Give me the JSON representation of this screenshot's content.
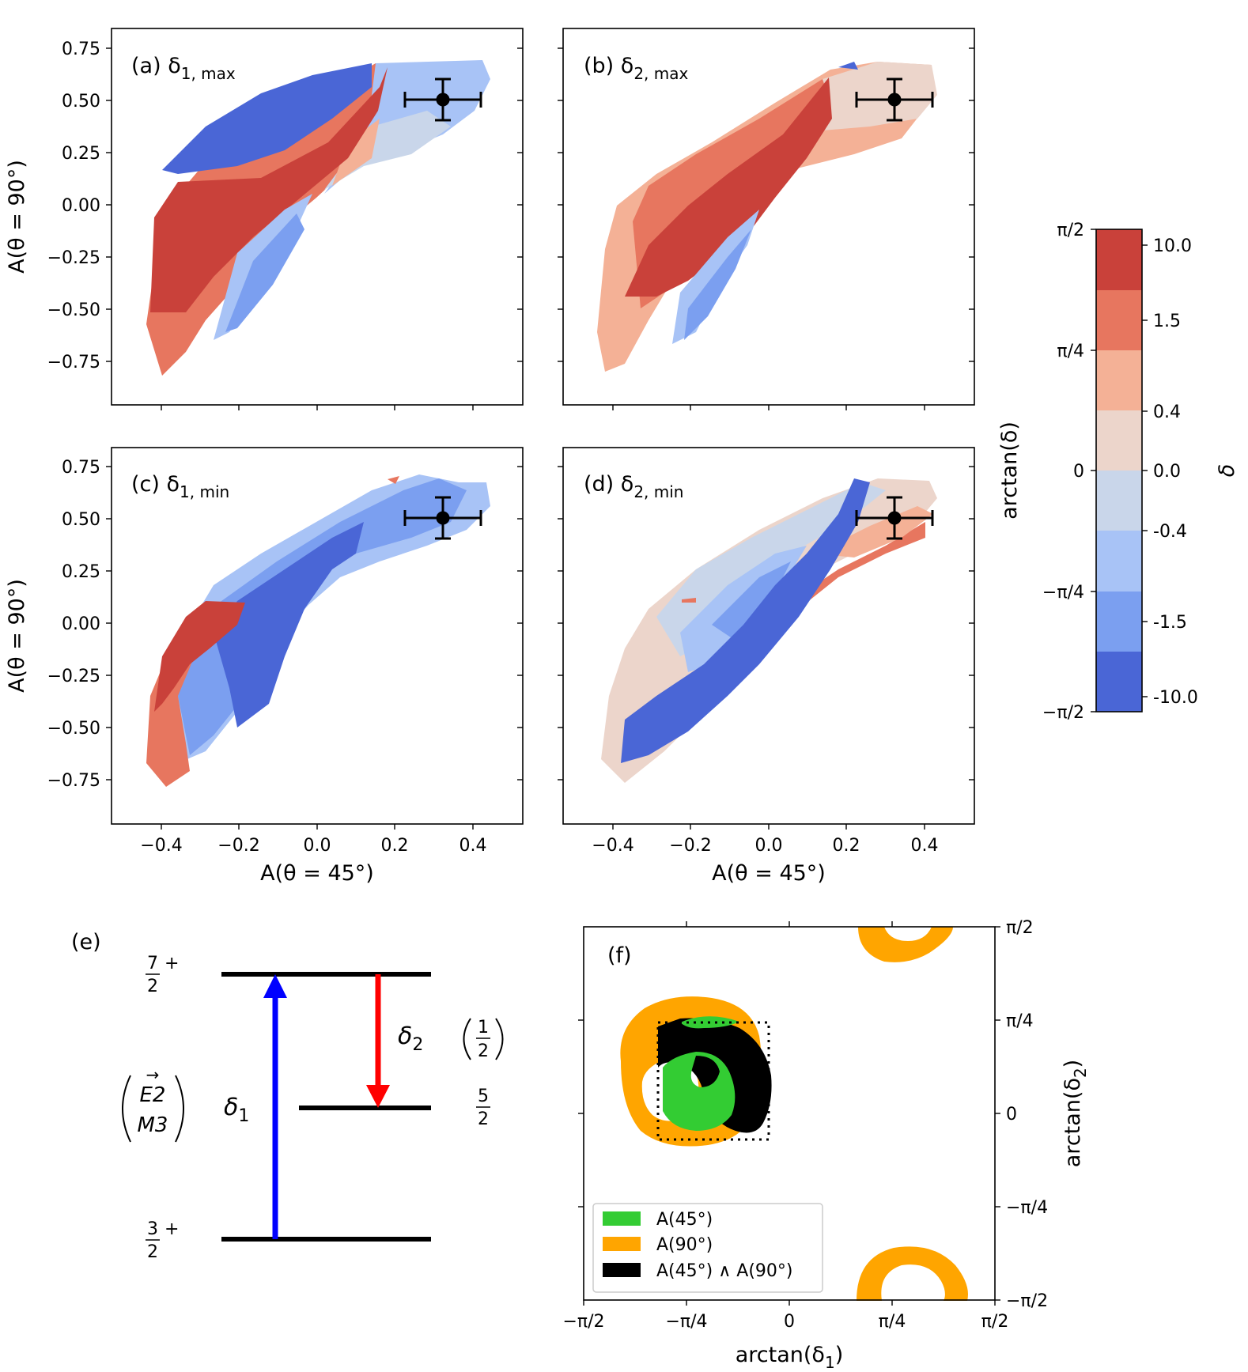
{
  "chart_data": [
    {
      "type": "filled-contour",
      "panel": "(a)",
      "label_prefix": "(a) δ",
      "label_sub": "1, max",
      "xlim": [
        -0.55,
        0.55
      ],
      "ylim": [
        -0.87,
        0.78
      ],
      "xticks": [
        "−0.4",
        "−0.2",
        "0.0",
        "0.2",
        "0.4"
      ],
      "yticks": [
        "0.75",
        "0.50",
        "0.25",
        "0.00",
        "−0.25",
        "−0.50",
        "−0.75"
      ],
      "xlabel": "",
      "ylabel": "A(θ = 90°)",
      "measured_point": {
        "x": 0.35,
        "y": 0.5,
        "xerr": 0.1,
        "yerr": 0.1
      }
    },
    {
      "type": "filled-contour",
      "panel": "(b)",
      "label_prefix": "(b) δ",
      "label_sub": "2, max",
      "xlim": [
        -0.55,
        0.55
      ],
      "ylim": [
        -0.87,
        0.78
      ],
      "xticks": [
        "−0.4",
        "−0.2",
        "0.0",
        "0.2",
        "0.4"
      ],
      "yticks": [
        "0.75",
        "0.50",
        "0.25",
        "0.00",
        "−0.25",
        "−0.50",
        "−0.75"
      ],
      "xlabel": "",
      "ylabel": "",
      "measured_point": {
        "x": 0.35,
        "y": 0.5,
        "xerr": 0.1,
        "yerr": 0.1
      }
    },
    {
      "type": "filled-contour",
      "panel": "(c)",
      "label_prefix": "(c) δ",
      "label_sub": "1, min",
      "xlim": [
        -0.55,
        0.55
      ],
      "ylim": [
        -0.87,
        0.78
      ],
      "xticks": [
        "−0.4",
        "−0.2",
        "0.0",
        "0.2",
        "0.4"
      ],
      "yticks": [
        "0.75",
        "0.50",
        "0.25",
        "0.00",
        "−0.25",
        "−0.50",
        "−0.75"
      ],
      "xlabel": "A(θ = 45°)",
      "ylabel": "A(θ = 90°)",
      "measured_point": {
        "x": 0.35,
        "y": 0.5,
        "xerr": 0.1,
        "yerr": 0.1
      }
    },
    {
      "type": "filled-contour",
      "panel": "(d)",
      "label_prefix": "(d) δ",
      "label_sub": "2, min",
      "xlim": [
        -0.55,
        0.55
      ],
      "ylim": [
        -0.87,
        0.78
      ],
      "xticks": [
        "−0.4",
        "−0.2",
        "0.0",
        "0.2",
        "0.4"
      ],
      "yticks": [
        "0.75",
        "0.50",
        "0.25",
        "0.00",
        "−0.25",
        "−0.50",
        "−0.75"
      ],
      "xlabel": "A(θ = 45°)",
      "ylabel": "",
      "measured_point": {
        "x": 0.35,
        "y": 0.5,
        "xerr": 0.1,
        "yerr": 0.1
      }
    },
    {
      "type": "colorbar",
      "left_label": "arctan(δ)",
      "right_label": "δ",
      "left_ticks": [
        "π/2",
        "π/4",
        "0",
        "−π/4",
        "−π/2"
      ],
      "right_ticks": [
        "10.0",
        "1.5",
        "0.4",
        "0.0",
        "-0.4",
        "-1.5",
        "-10.0"
      ],
      "levels": [
        {
          "range": "1.5 to 10.0",
          "color": "#c9413a"
        },
        {
          "range": "0.4 to 1.5",
          "color": "#e7765f"
        },
        {
          "range": "0.0 to 0.4",
          "color": "#f4b196"
        },
        {
          "range": "0.0",
          "color": "#ecd5cb"
        },
        {
          "range": "-0.4 to 0.0",
          "color": "#c9d6ea"
        },
        {
          "range": "-1.5 to -0.4",
          "color": "#a8c3f6"
        },
        {
          "range": "-10.0 to -1.5",
          "color": "#7b9ff0"
        },
        {
          "range": "< -10.0",
          "color": "#4a66d6"
        }
      ]
    },
    {
      "type": "level-scheme",
      "panel": "(e)",
      "levels": [
        {
          "spin_num": "7",
          "spin_den": "2",
          "parity": "+"
        },
        {
          "spin_num": "5",
          "spin_den": "2",
          "parity": ""
        },
        {
          "spin_num": "3",
          "spin_den": "2",
          "parity": "+"
        }
      ],
      "transitions": [
        {
          "name": "δ",
          "sub": "1",
          "from": "3/2+",
          "to": "7/2+",
          "color": "#0000ff"
        },
        {
          "name": "δ",
          "sub": "2",
          "from": "7/2+",
          "to": "5/2",
          "color": "#ff0000"
        }
      ],
      "multipolarity_top": "E2",
      "multipolarity_bottom": "M3",
      "bracket_num": "1",
      "bracket_den": "2"
    },
    {
      "type": "region-map",
      "panel": "(f)",
      "xlim_labels": [
        "−π/2",
        "−π/4",
        "0",
        "π/4",
        "π/2"
      ],
      "ylim_labels": [
        "π/2",
        "π/4",
        "0",
        "−π/4",
        "−π/2"
      ],
      "xlabel_prefix": "arctan(δ",
      "xlabel_sub": "1",
      "ylabel_prefix": "arctan(δ",
      "ylabel_sub": "2",
      "legend": [
        {
          "label": "A(45°)",
          "color": "#33cc33"
        },
        {
          "label": "A(90°)",
          "color": "#ffa500"
        },
        {
          "label": "A(45°) ∧ A(90°)",
          "color": "#000000"
        }
      ]
    }
  ]
}
